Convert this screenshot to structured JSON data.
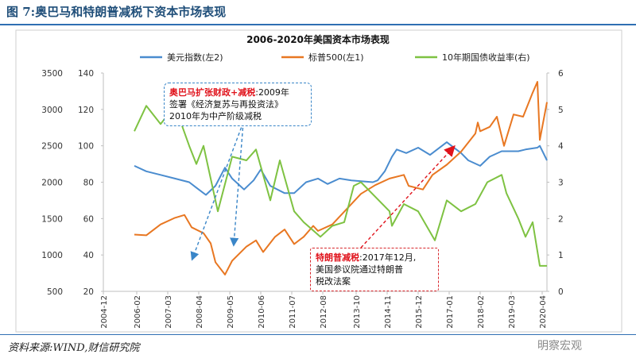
{
  "figure_title": "图 7:奥巴马和特朗普减税下资本市场表现",
  "source": "资料来源:WIND,财信研究院",
  "watermark": "明察宏观",
  "chart_data": {
    "type": "line",
    "title": "2006-2020年美国资本市场表现",
    "x_tick_labels": [
      "2004-12",
      "2006-02",
      "2007-03",
      "2008-04",
      "2009-05",
      "2010-06",
      "2011-07",
      "2012-08",
      "2013-10",
      "2014-11",
      "2015-12",
      "2017-01",
      "2018-02",
      "2019-03",
      "2020-04"
    ],
    "x_range": [
      "2004-12",
      "2020-06"
    ],
    "y_left_outer": {
      "range": [
        500,
        3500
      ],
      "ticks": [
        500,
        1000,
        1500,
        2000,
        2500,
        3000,
        3500
      ]
    },
    "y_left_inner": {
      "range": [
        20,
        140
      ],
      "ticks": [
        20,
        40,
        60,
        80,
        100,
        120,
        140
      ]
    },
    "y_right": {
      "range": [
        0,
        6
      ],
      "ticks": [
        0,
        1,
        2,
        3,
        4,
        5,
        6
      ]
    },
    "grid": false,
    "legend_placement": "top",
    "series": [
      {
        "name": "美元指数(左2)",
        "color": "#4a8ccf",
        "axis": "left_inner",
        "points": [
          [
            "2006-01",
            89
          ],
          [
            "2006-06",
            86
          ],
          [
            "2006-12",
            84
          ],
          [
            "2007-06",
            82
          ],
          [
            "2007-12",
            80
          ],
          [
            "2008-03",
            77
          ],
          [
            "2008-07",
            73
          ],
          [
            "2008-11",
            78
          ],
          [
            "2009-03",
            88
          ],
          [
            "2009-06",
            82
          ],
          [
            "2009-11",
            76
          ],
          [
            "2010-03",
            81
          ],
          [
            "2010-06",
            87
          ],
          [
            "2010-10",
            78
          ],
          [
            "2011-04",
            74
          ],
          [
            "2011-08",
            74
          ],
          [
            "2012-01",
            80
          ],
          [
            "2012-06",
            82
          ],
          [
            "2012-10",
            79
          ],
          [
            "2013-03",
            82
          ],
          [
            "2013-08",
            81
          ],
          [
            "2014-05",
            80
          ],
          [
            "2014-07",
            81
          ],
          [
            "2014-10",
            86
          ],
          [
            "2015-01",
            94
          ],
          [
            "2015-03",
            98
          ],
          [
            "2015-07",
            96
          ],
          [
            "2015-12",
            99
          ],
          [
            "2016-05",
            95
          ],
          [
            "2016-12",
            102
          ],
          [
            "2017-01",
            101
          ],
          [
            "2017-06",
            96
          ],
          [
            "2017-09",
            92
          ],
          [
            "2018-02",
            89
          ],
          [
            "2018-06",
            94
          ],
          [
            "2018-11",
            97
          ],
          [
            "2019-06",
            97
          ],
          [
            "2019-09",
            98
          ],
          [
            "2020-02",
            99
          ],
          [
            "2020-03",
            100
          ],
          [
            "2020-06",
            92
          ]
        ]
      },
      {
        "name": "标普500(左1)",
        "color": "#e87722",
        "axis": "left_outer",
        "points": [
          [
            "2006-01",
            1280
          ],
          [
            "2006-06",
            1270
          ],
          [
            "2006-12",
            1420
          ],
          [
            "2007-06",
            1510
          ],
          [
            "2007-10",
            1550
          ],
          [
            "2008-01",
            1380
          ],
          [
            "2008-06",
            1300
          ],
          [
            "2008-09",
            1160
          ],
          [
            "2008-11",
            900
          ],
          [
            "2009-03",
            730
          ],
          [
            "2009-06",
            920
          ],
          [
            "2009-12",
            1115
          ],
          [
            "2010-04",
            1200
          ],
          [
            "2010-07",
            1040
          ],
          [
            "2010-12",
            1250
          ],
          [
            "2011-04",
            1350
          ],
          [
            "2011-08",
            1150
          ],
          [
            "2011-12",
            1250
          ],
          [
            "2012-04",
            1400
          ],
          [
            "2012-06",
            1330
          ],
          [
            "2012-12",
            1420
          ],
          [
            "2013-06",
            1630
          ],
          [
            "2013-12",
            1840
          ],
          [
            "2014-06",
            1960
          ],
          [
            "2014-12",
            2050
          ],
          [
            "2015-06",
            2100
          ],
          [
            "2015-08",
            1950
          ],
          [
            "2016-02",
            1900
          ],
          [
            "2016-06",
            2100
          ],
          [
            "2016-12",
            2240
          ],
          [
            "2017-06",
            2420
          ],
          [
            "2017-12",
            2670
          ],
          [
            "2018-01",
            2820
          ],
          [
            "2018-02",
            2700
          ],
          [
            "2018-06",
            2760
          ],
          [
            "2018-09",
            2900
          ],
          [
            "2018-12",
            2500
          ],
          [
            "2019-04",
            2930
          ],
          [
            "2019-08",
            2900
          ],
          [
            "2019-12",
            3230
          ],
          [
            "2020-02",
            3380
          ],
          [
            "2020-03",
            2580
          ],
          [
            "2020-06",
            3100
          ]
        ]
      },
      {
        "name": "10年期国债收益率(右)",
        "color": "#7ec242",
        "axis": "right",
        "points": [
          [
            "2006-01",
            4.4
          ],
          [
            "2006-06",
            5.1
          ],
          [
            "2006-12",
            4.6
          ],
          [
            "2007-06",
            5.1
          ],
          [
            "2007-12",
            4.0
          ],
          [
            "2008-03",
            3.5
          ],
          [
            "2008-06",
            4.0
          ],
          [
            "2008-12",
            2.2
          ],
          [
            "2009-06",
            3.7
          ],
          [
            "2009-12",
            3.6
          ],
          [
            "2010-04",
            3.9
          ],
          [
            "2010-10",
            2.5
          ],
          [
            "2011-02",
            3.6
          ],
          [
            "2011-08",
            2.2
          ],
          [
            "2011-12",
            1.9
          ],
          [
            "2012-07",
            1.5
          ],
          [
            "2012-12",
            1.8
          ],
          [
            "2013-05",
            1.9
          ],
          [
            "2013-09",
            2.9
          ],
          [
            "2013-12",
            3.0
          ],
          [
            "2014-06",
            2.6
          ],
          [
            "2014-12",
            2.2
          ],
          [
            "2015-01",
            1.8
          ],
          [
            "2015-06",
            2.4
          ],
          [
            "2015-12",
            2.2
          ],
          [
            "2016-07",
            1.4
          ],
          [
            "2016-12",
            2.5
          ],
          [
            "2017-06",
            2.2
          ],
          [
            "2017-12",
            2.4
          ],
          [
            "2018-05",
            3.0
          ],
          [
            "2018-11",
            3.2
          ],
          [
            "2019-01",
            2.7
          ],
          [
            "2019-06",
            2.0
          ],
          [
            "2019-09",
            1.5
          ],
          [
            "2019-12",
            1.9
          ],
          [
            "2020-03",
            0.7
          ],
          [
            "2020-06",
            0.7
          ]
        ]
      }
    ],
    "annotations": [
      {
        "highlight": "奥巴马扩张财政+减税",
        "text_lines": [
          "2009年",
          "签署《经济复苏与再投资法》",
          "2010年为中产阶级减税"
        ]
      },
      {
        "highlight": "特朗普减税",
        "text_lines": [
          "2017年12月,",
          "美国参议院通过特朗普",
          "税改法案"
        ]
      }
    ]
  }
}
